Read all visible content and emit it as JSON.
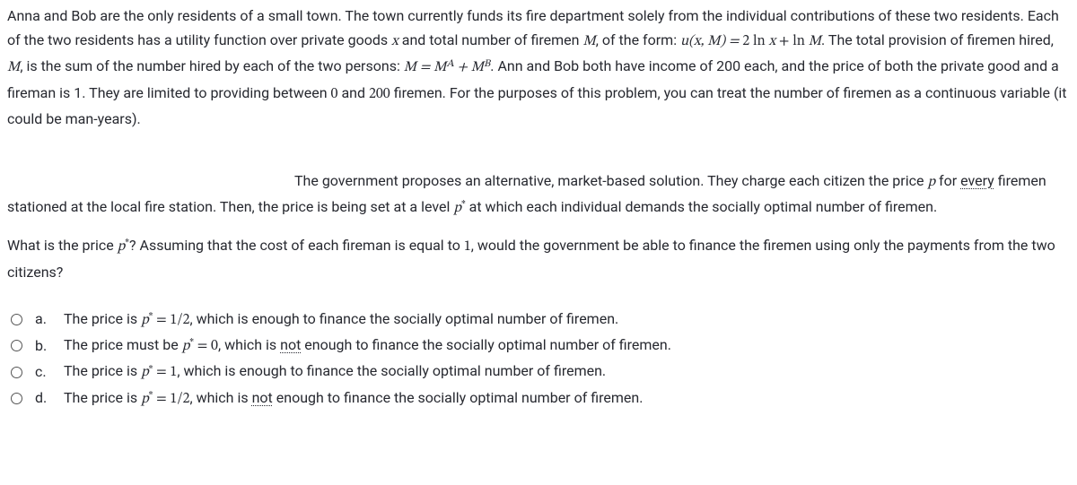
{
  "context": {
    "s1a": "Anna and Bob are the only residents of a small town. The town currently funds its fire department solely from the individual contributions of these two residents. Each of the two residents has a utility function over private goods ",
    "var_x": "x",
    "s1b": " and total number of firemen ",
    "var_M": "M",
    "s1c": ", of the form: ",
    "util_lhs": "u(x, M) = ",
    "util_rhs_a": "2 ln ",
    "util_rhs_b": " + ln ",
    "s2a": ". The total provision of firemen hired, ",
    "s2b": ", is the sum of the number hired by each of the two persons: ",
    "M_eq": "M = M",
    "sup_A": "A",
    "plus": " + M",
    "sup_B": "B",
    "s3a": ". Ann and Bob both have income of 200 each, and the price of both the private good and a fireman is 1. They are limited to providing between ",
    "zero": "0",
    "s3b": " and ",
    "twohundred": "200",
    "s3c": " firemen. For the purposes of this problem, you can treat the number of firemen as a continuous variable (it could be man-years)."
  },
  "proposal": {
    "lead_space": " ",
    "t1a": "The government proposes an alternative, market-based solution. They charge each citizen the price ",
    "var_p": "p",
    "t1b": " for ",
    "every": "every",
    "t2a": " firemen stationed at the local fire station. Then, the price is being set at a level ",
    "pstar": "p",
    "star": "*",
    "t2b": " at which each individual demands the socially optimal number of firemen."
  },
  "question": {
    "q1a": "What is the price ",
    "q1b": "? Assuming that the cost of each fireman is equal to ",
    "one": "1",
    "q1c": ", would the government be able to finance the firemen using only the payments from the two citizens?"
  },
  "options": {
    "a": {
      "letter": "a.",
      "pre": "The price is ",
      "val": " = 1/2",
      "post": ", which is enough to finance the socially optimal number of firemen."
    },
    "b": {
      "letter": "b.",
      "pre": "The price must be ",
      "val": " = 0",
      "post_a": ", which is ",
      "not": "not",
      "post_b": " enough to finance the socially optimal number of firemen."
    },
    "c": {
      "letter": "c.",
      "pre": "The price is ",
      "val": " = 1",
      "post": ", which is enough to finance the socially optimal number of firemen."
    },
    "d": {
      "letter": "d.",
      "pre": "The price is ",
      "val": " = 1/2",
      "post_a": ", which is ",
      "not": "not",
      "post_b": " enough to finance the socially optimal number of firemen."
    }
  }
}
